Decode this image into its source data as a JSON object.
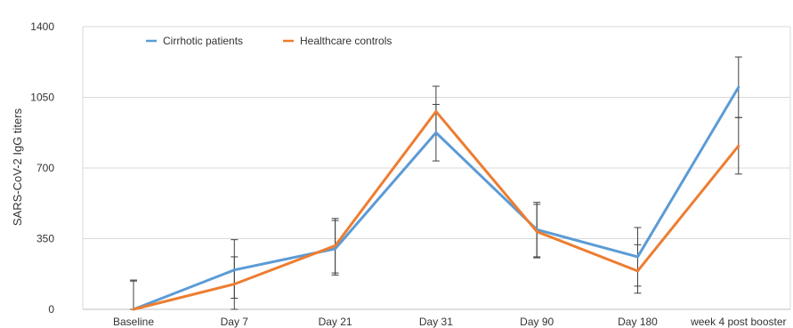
{
  "chart_data": {
    "type": "line",
    "title": "",
    "xlabel": "",
    "ylabel": "SARS-CoV-2 IgG titers",
    "categories": [
      "Baseline",
      "Day 7",
      "Day 21",
      "Day 31",
      "Day 90",
      "Day 180",
      "week 4 post booster"
    ],
    "ylim": [
      0,
      1400
    ],
    "yticks": [
      0,
      350,
      700,
      1050,
      1400
    ],
    "grid": true,
    "legend_position": "top-left",
    "series": [
      {
        "name": "Cirrhotic patients",
        "color": "#5b9bd5",
        "values": [
          0,
          195,
          300,
          875,
          395,
          260,
          1100
        ],
        "error_low": [
          0,
          55,
          170,
          735,
          260,
          115,
          950
        ],
        "error_high": [
          145,
          345,
          440,
          1015,
          530,
          405,
          1250
        ]
      },
      {
        "name": "Healthcare controls",
        "color": "#ed7d31",
        "values": [
          0,
          125,
          315,
          980,
          385,
          190,
          810
        ],
        "error_low": [
          0,
          0,
          180,
          865,
          255,
          80,
          670
        ],
        "error_high": [
          140,
          260,
          450,
          1105,
          520,
          320,
          950
        ]
      }
    ]
  }
}
